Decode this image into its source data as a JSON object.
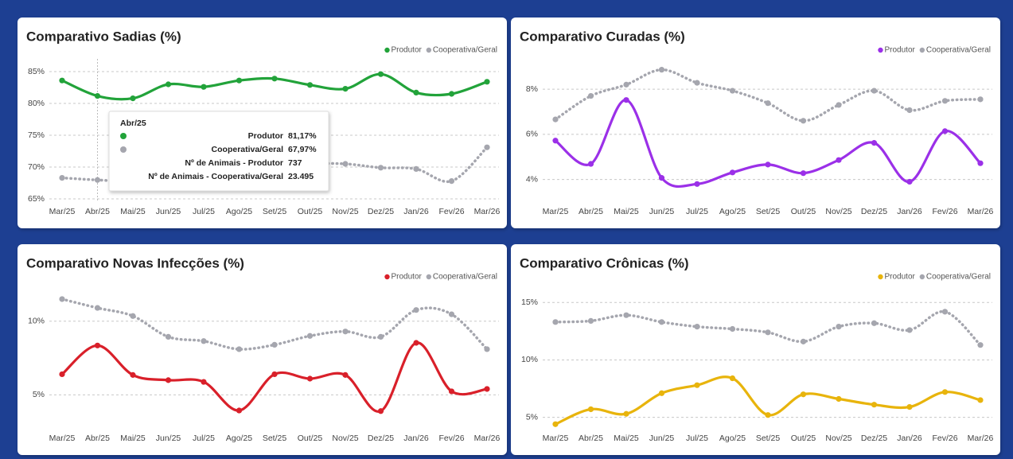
{
  "chart_data": [
    {
      "type": "line",
      "title": "Comparativo Sadias (%)",
      "categories": [
        "Mar/25",
        "Abr/25",
        "Mai/25",
        "Jun/25",
        "Jul/25",
        "Ago/25",
        "Set/25",
        "Out/25",
        "Nov/25",
        "Dez/25",
        "Jan/26",
        "Fev/26",
        "Mar/26"
      ],
      "series": [
        {
          "name": "Produtor",
          "color": "#22a33a",
          "style": "solid",
          "values": [
            83.6,
            81.17,
            80.8,
            83.0,
            82.6,
            83.6,
            83.9,
            82.9,
            82.3,
            84.6,
            81.7,
            81.5,
            83.4
          ]
        },
        {
          "name": "Cooperativa/Geral",
          "color": "#a5a6ae",
          "style": "dotted",
          "values": [
            68.3,
            67.97,
            67.8,
            68.5,
            69.0,
            69.5,
            70.0,
            70.5,
            70.5,
            69.9,
            69.7,
            67.8,
            73.1
          ]
        }
      ],
      "ylim": [
        64.5,
        86.5
      ],
      "yticks": [
        {
          "value": 65,
          "label": "65%"
        },
        {
          "value": 70,
          "label": "70%"
        },
        {
          "value": 75,
          "label": "75%"
        },
        {
          "value": 80,
          "label": "80%"
        },
        {
          "value": 85,
          "label": "85%"
        }
      ],
      "grid": true,
      "legend": "top-right",
      "tooltip": {
        "title": "Abr/25",
        "rows": [
          {
            "label": "Produtor",
            "value": "81,17%"
          },
          {
            "label": "Cooperativa/Geral",
            "value": "67,97%"
          },
          {
            "label": "Nº de Animais - Produtor",
            "value": "737"
          },
          {
            "label": "Nº de Animais - Cooperativa/Geral",
            "value": "23.495"
          }
        ]
      }
    },
    {
      "type": "line",
      "title": "Comparativo Curadas (%)",
      "categories": [
        "Mar/25",
        "Abr/25",
        "Mai/25",
        "Jun/25",
        "Jul/25",
        "Ago/25",
        "Set/25",
        "Out/25",
        "Nov/25",
        "Dez/25",
        "Jan/26",
        "Fev/26",
        "Mar/26"
      ],
      "series": [
        {
          "name": "Produtor",
          "color": "#9b30e8",
          "style": "solid",
          "values": [
            5.72,
            4.69,
            7.52,
            4.07,
            3.8,
            4.31,
            4.66,
            4.28,
            4.86,
            5.62,
            3.9,
            6.14,
            4.72
          ]
        },
        {
          "name": "Cooperativa/Geral",
          "color": "#a5a6ae",
          "style": "dotted",
          "values": [
            6.66,
            7.7,
            8.2,
            8.86,
            8.28,
            7.93,
            7.38,
            6.6,
            7.3,
            7.93,
            7.07,
            7.48,
            7.55
          ]
        }
      ],
      "ylim": [
        3,
        9.2
      ],
      "yticks": [
        {
          "value": 4,
          "label": "4%"
        },
        {
          "value": 6,
          "label": "6%"
        },
        {
          "value": 8,
          "label": "8%"
        }
      ],
      "grid": true,
      "legend": "top-right"
    },
    {
      "type": "line",
      "title": "Comparativo Novas Infecções (%)",
      "categories": [
        "Mar/25",
        "Abr/25",
        "Mai/25",
        "Jun/25",
        "Jul/25",
        "Ago/25",
        "Set/25",
        "Out/25",
        "Nov/25",
        "Dez/25",
        "Jan/26",
        "Fev/26",
        "Mar/26"
      ],
      "series": [
        {
          "name": "Produtor",
          "color": "#d9202a",
          "style": "solid",
          "values": [
            6.4,
            8.35,
            6.35,
            6.0,
            5.88,
            3.94,
            6.4,
            6.1,
            6.35,
            3.9,
            8.53,
            5.24,
            5.4
          ]
        },
        {
          "name": "Cooperativa/Geral",
          "color": "#a5a6ae",
          "style": "dotted",
          "values": [
            11.5,
            10.9,
            10.35,
            8.94,
            8.65,
            8.1,
            8.4,
            9.0,
            9.3,
            8.94,
            10.76,
            10.47,
            8.1
          ]
        }
      ],
      "ylim": [
        2.7,
        12.2
      ],
      "yticks": [
        {
          "value": 5,
          "label": "5%"
        },
        {
          "value": 10,
          "label": "10%"
        }
      ],
      "grid": true,
      "legend": "top-right"
    },
    {
      "type": "line",
      "title": "Comparativo Crônicas (%)",
      "categories": [
        "Mar/25",
        "Abr/25",
        "Mai/25",
        "Jun/25",
        "Jul/25",
        "Ago/25",
        "Set/25",
        "Out/25",
        "Nov/25",
        "Dez/25",
        "Jan/26",
        "Fev/26",
        "Mar/26"
      ],
      "series": [
        {
          "name": "Produtor",
          "color": "#e8b40c",
          "style": "solid",
          "values": [
            4.4,
            5.7,
            5.3,
            7.1,
            7.8,
            8.4,
            5.2,
            7.0,
            6.6,
            6.1,
            5.9,
            7.2,
            6.5
          ]
        },
        {
          "name": "Cooperativa/Geral",
          "color": "#a5a6ae",
          "style": "dotted",
          "values": [
            13.3,
            13.4,
            13.9,
            13.3,
            12.9,
            12.7,
            12.4,
            11.6,
            12.9,
            13.2,
            12.6,
            14.2,
            11.3
          ]
        }
      ],
      "ylim": [
        4,
        16.2
      ],
      "yticks": [
        {
          "value": 5,
          "label": "5%"
        },
        {
          "value": 10,
          "label": "10%"
        },
        {
          "value": 15,
          "label": "15%"
        }
      ],
      "grid": true,
      "legend": "top-right"
    }
  ]
}
